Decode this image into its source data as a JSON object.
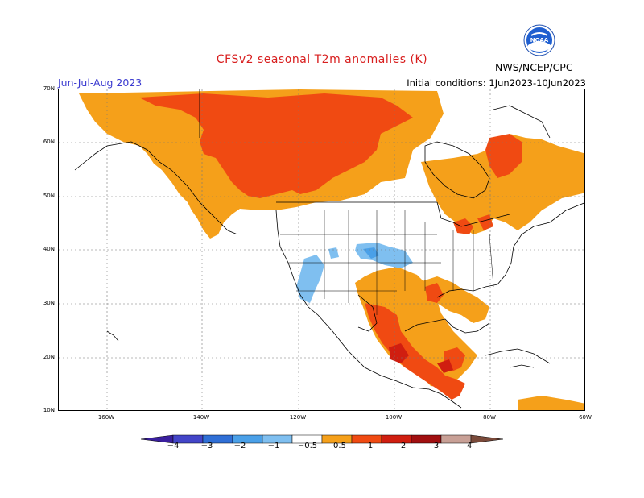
{
  "title": "CFSv2 seasonal T2m anomalies (K)",
  "season": "Jun-Jul-Aug 2023",
  "initial_conditions": "Initial conditions: 1Jun2023-10Jun2023",
  "agency": "NWS/NCEP/CPC",
  "logo_text": "NOAA",
  "lat_labels": [
    "70N",
    "60N",
    "50N",
    "40N",
    "30N",
    "20N",
    "10N"
  ],
  "lon_labels": [
    "160W",
    "140W",
    "120W",
    "100W",
    "80W",
    "60W"
  ],
  "colorbar": {
    "ticks": [
      "−4",
      "−3",
      "−2",
      "−1",
      "−0.5",
      "0.5",
      "1",
      "2",
      "3",
      "4"
    ],
    "colors": [
      "#3a1f9e",
      "#4345c8",
      "#2f6fd6",
      "#4aa0e8",
      "#7fbff0",
      "#ffffff",
      "#f5a01a",
      "#f04a12",
      "#d01e10",
      "#a10f10",
      "#c8a096",
      "#7a4a3a"
    ]
  },
  "legend_colors": {
    "warm_05_1": "#f5a01a",
    "warm_1_2": "#f04a12",
    "warm_2_3": "#d01e10",
    "cool_05_1": "#7fbff0",
    "cool_1_2": "#4aa0e8"
  }
}
